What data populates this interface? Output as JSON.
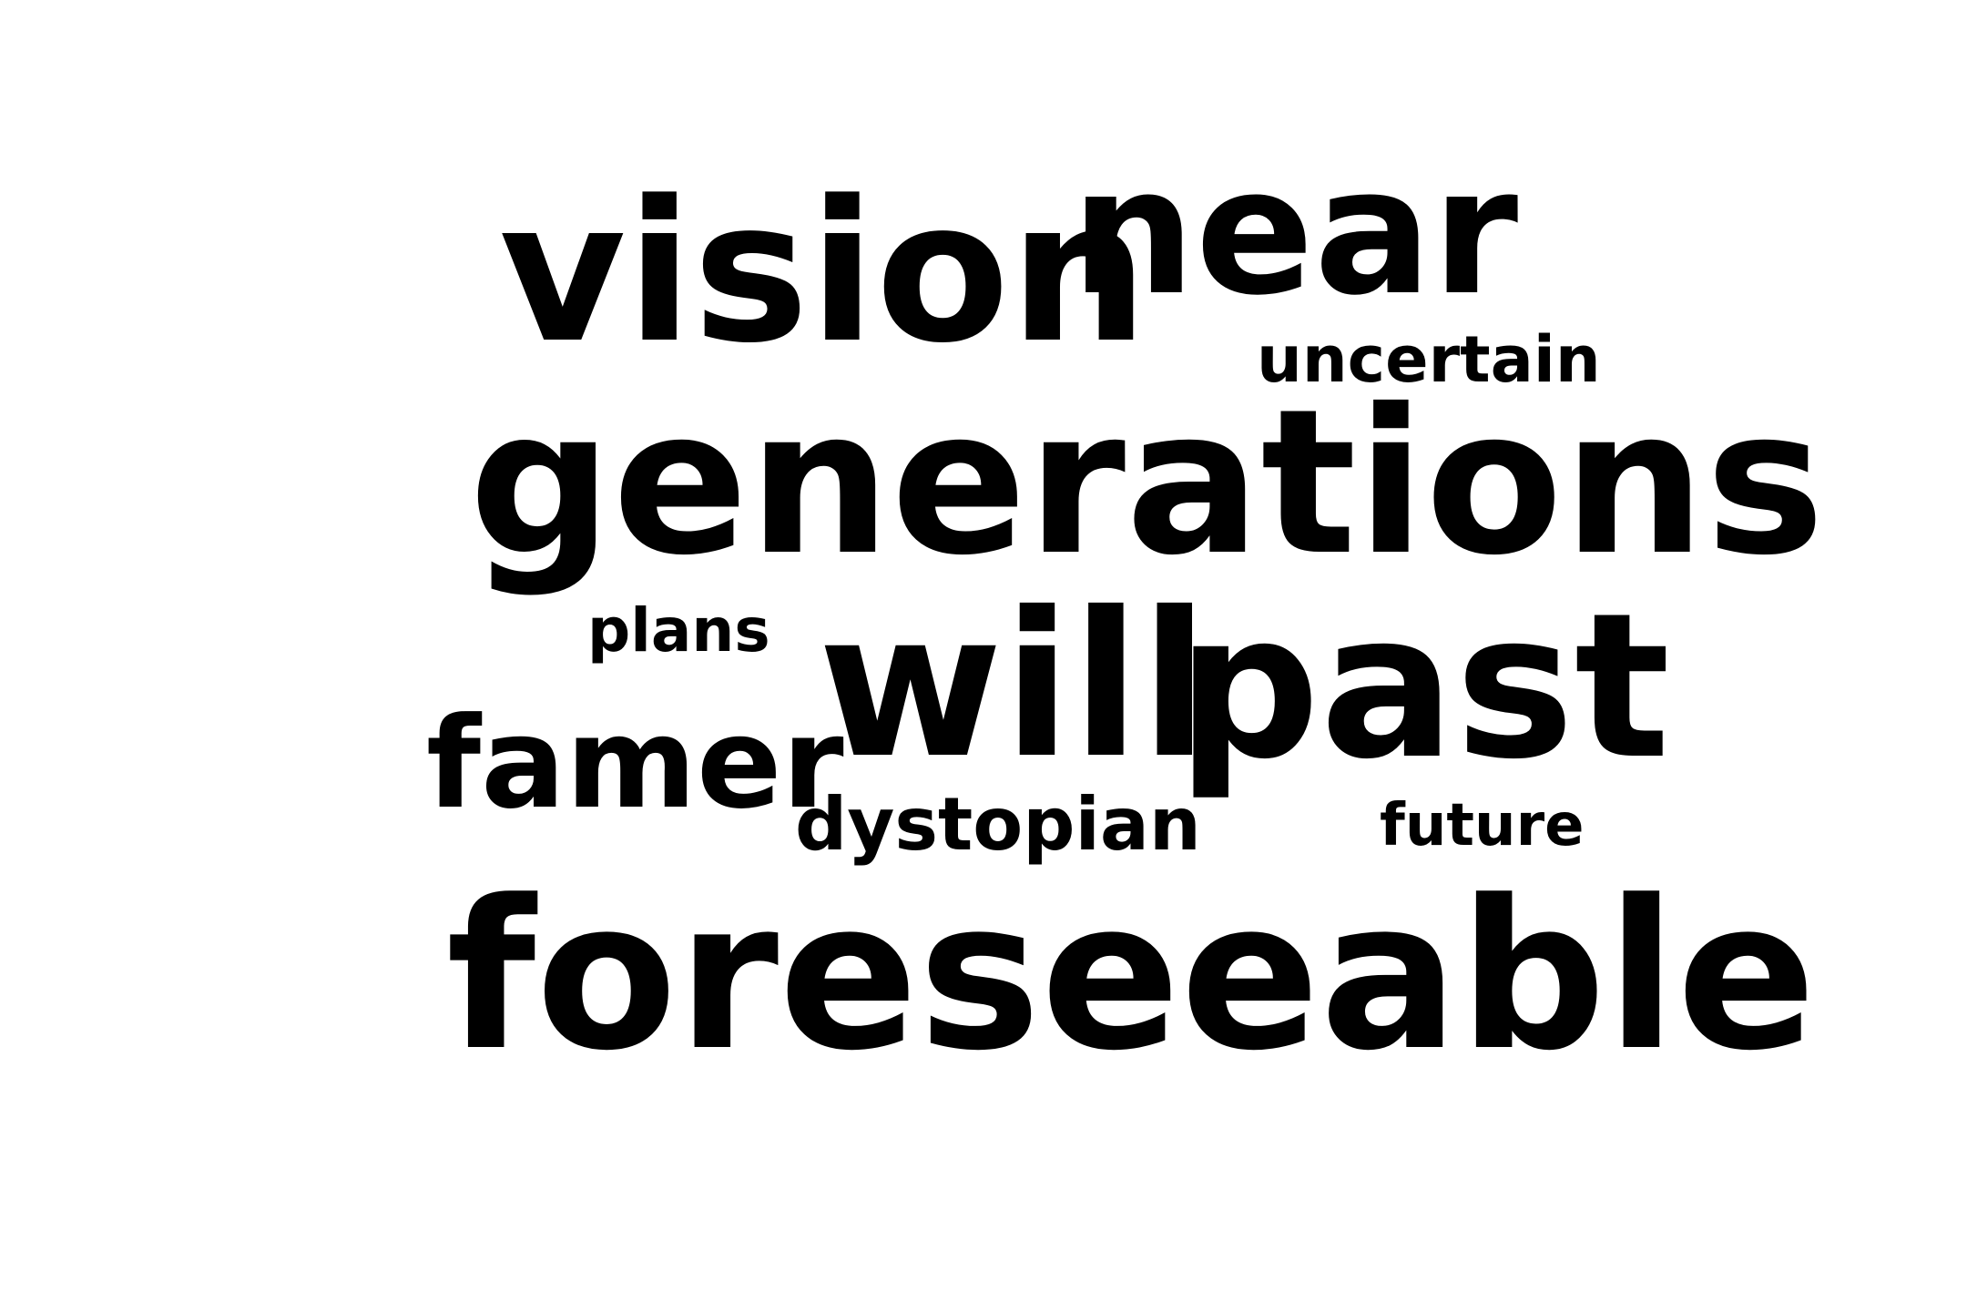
{
  "word_cloud": {
    "text_color": "#000000",
    "background_color": "#ffffff",
    "words": [
      {
        "text": "vision"
      },
      {
        "text": "near"
      },
      {
        "text": "uncertain"
      },
      {
        "text": "generations"
      },
      {
        "text": "plans"
      },
      {
        "text": "will"
      },
      {
        "text": "past"
      },
      {
        "text": "famer"
      },
      {
        "text": "dystopian"
      },
      {
        "text": "future"
      },
      {
        "text": "foreseeable"
      }
    ]
  }
}
